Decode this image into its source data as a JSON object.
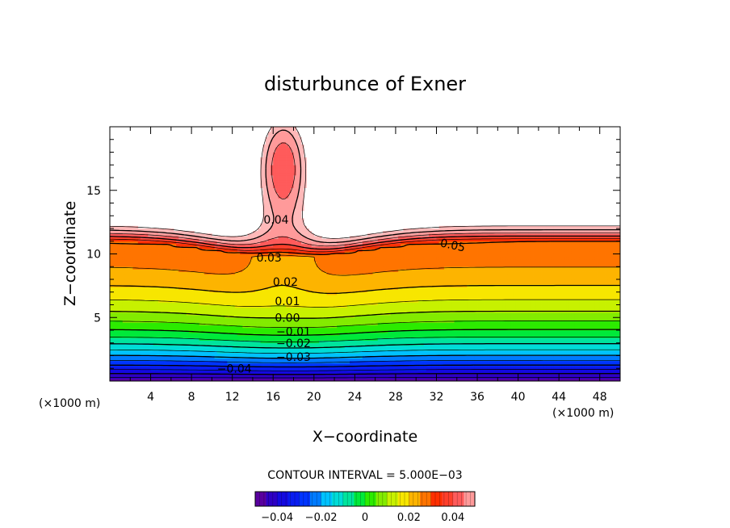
{
  "chart_data": {
    "type": "heatmap",
    "title": "disturbunce of Exner",
    "xlabel": "X−coordinate",
    "ylabel": "Z−coordinate",
    "x_unit": "(×1000 m)",
    "z_unit": "(×1000 m)",
    "xlim": [
      0,
      50
    ],
    "ylim": [
      0,
      20
    ],
    "x_ticks": [
      "4",
      "8",
      "12",
      "16",
      "20",
      "24",
      "28",
      "32",
      "36",
      "40",
      "44",
      "48"
    ],
    "y_ticks": [
      "5",
      "10",
      "15"
    ],
    "contour_interval_text": "CONTOUR INTERVAL = 5.000E−03",
    "contour_labels": [
      {
        "text": "0.05",
        "x": 33.6,
        "z": 10.7
      },
      {
        "text": "0.04",
        "x": 16.3,
        "z": 12.7
      },
      {
        "text": "0.03",
        "x": 15.6,
        "z": 9.7
      },
      {
        "text": "0.02",
        "x": 17.2,
        "z": 7.8
      },
      {
        "text": "0.01",
        "x": 17.4,
        "z": 6.3
      },
      {
        "text": "0.00",
        "x": 17.4,
        "z": 5.0
      },
      {
        "text": "−0.01",
        "x": 18.0,
        "z": 3.9
      },
      {
        "text": "−0.02",
        "x": 18.0,
        "z": 3.0
      },
      {
        "text": "−0.03",
        "x": 18.0,
        "z": 1.9
      },
      {
        "text": "−0.04",
        "x": 12.2,
        "z": 1.0
      }
    ],
    "colorbar": {
      "min": -0.05,
      "max": 0.05,
      "ticks": [
        "−0.04",
        "−0.02",
        "0",
        "0.02",
        "0.04"
      ],
      "tick_values": [
        -0.04,
        -0.02,
        0,
        0.02,
        0.04
      ]
    },
    "grid": false,
    "legend": "colorbar-bottom"
  }
}
